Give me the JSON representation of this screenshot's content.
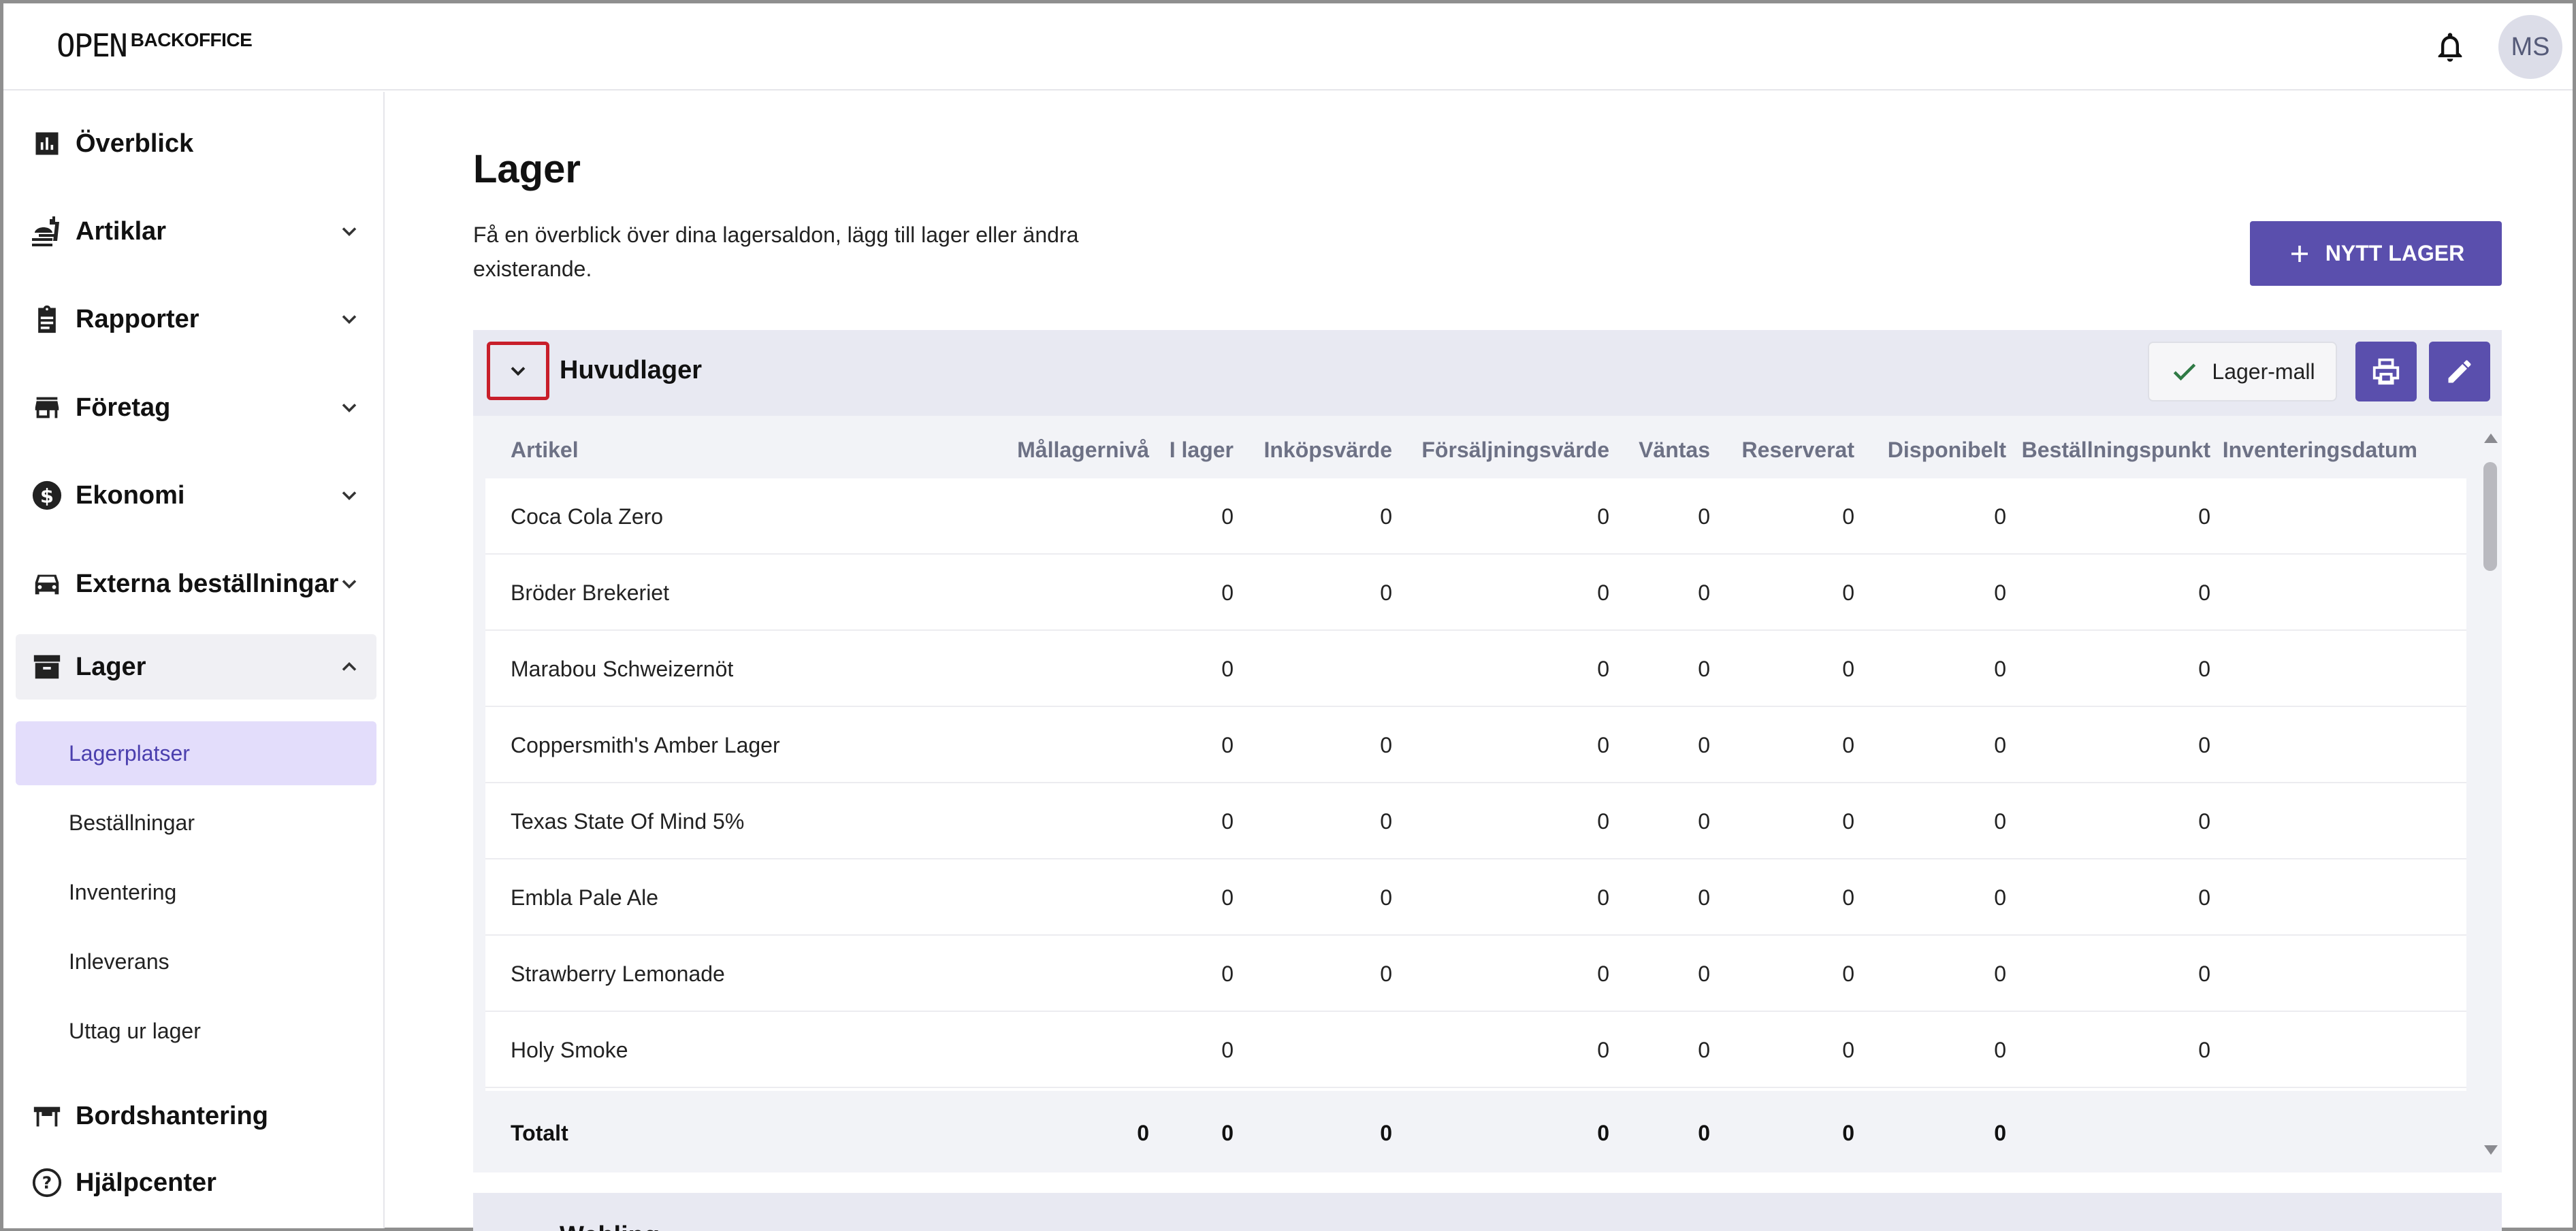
{
  "header": {
    "logo_mark": "OPEN",
    "logo_text": "BACKOFFICE",
    "avatar_initials": "MS"
  },
  "sidebar": {
    "items": [
      {
        "label": "Överblick",
        "icon": "bar-chart-icon"
      },
      {
        "label": "Artiklar",
        "icon": "food-icon"
      },
      {
        "label": "Rapporter",
        "icon": "clipboard-icon"
      },
      {
        "label": "Företag",
        "icon": "store-icon"
      },
      {
        "label": "Ekonomi",
        "icon": "dollar-icon"
      },
      {
        "label": "Externa beställningar",
        "icon": "car-icon"
      },
      {
        "label": "Lager",
        "icon": "archive-icon"
      },
      {
        "label": "Bordshantering",
        "icon": "table-icon"
      },
      {
        "label": "Hjälpcenter",
        "icon": "help-icon"
      }
    ],
    "lager_sub": [
      "Lagerplatser",
      "Beställningar",
      "Inventering",
      "Inleverans",
      "Uttag ur lager"
    ]
  },
  "main": {
    "title": "Lager",
    "description": "Få en överblick över dina lagersaldon, lägg till lager eller ändra existerande.",
    "new_button": "NYTT LAGER",
    "accent_color": "#5a4fad"
  },
  "panel": {
    "title": "Huvudlager",
    "template_button": "Lager-mall",
    "columns": [
      "Artikel",
      "Mållagernivå",
      "I lager",
      "Inköpsvärde",
      "Försäljningsvärde",
      "Väntas",
      "Reserverat",
      "Disponibelt",
      "Beställningspunkt",
      "Inventeringsdatum"
    ],
    "rows": [
      [
        "Coca Cola Zero",
        "",
        "0",
        "0",
        "0",
        "0",
        "0",
        "0",
        "0",
        ""
      ],
      [
        "Bröder Brekeriet",
        "",
        "0",
        "0",
        "0",
        "0",
        "0",
        "0",
        "0",
        ""
      ],
      [
        "Marabou Schweizernöt",
        "",
        "0",
        "",
        "0",
        "0",
        "0",
        "0",
        "0",
        ""
      ],
      [
        "Coppersmith's Amber Lager",
        "",
        "0",
        "0",
        "0",
        "0",
        "0",
        "0",
        "0",
        ""
      ],
      [
        "Texas State Of Mind 5%",
        "",
        "0",
        "0",
        "0",
        "0",
        "0",
        "0",
        "0",
        ""
      ],
      [
        "Embla Pale Ale",
        "",
        "0",
        "0",
        "0",
        "0",
        "0",
        "0",
        "0",
        ""
      ],
      [
        "Strawberry Lemonade",
        "",
        "0",
        "0",
        "0",
        "0",
        "0",
        "0",
        "0",
        ""
      ],
      [
        "Holy Smoke",
        "",
        "0",
        "",
        "0",
        "0",
        "0",
        "0",
        "0",
        ""
      ]
    ],
    "total": [
      "Totalt",
      "0",
      "0",
      "0",
      "0",
      "0",
      "0",
      "0",
      "",
      ""
    ]
  },
  "next_panel": {
    "title": "Webling"
  }
}
